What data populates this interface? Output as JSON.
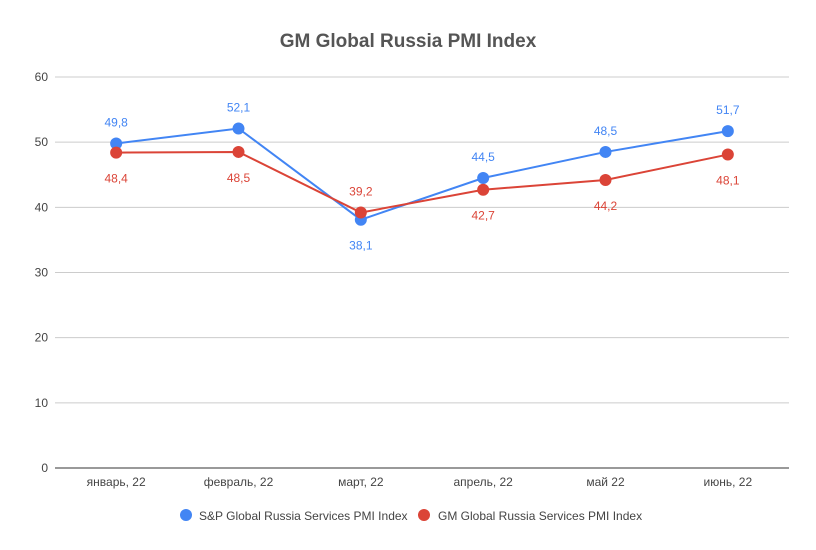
{
  "chart_data": {
    "type": "line",
    "title": "GM Global Russia PMI Index",
    "categories": [
      "январь, 22",
      "февраль, 22",
      "март, 22",
      "апрель, 22",
      "май 22",
      "июнь, 22"
    ],
    "ylim": [
      0,
      60
    ],
    "yticks": [
      0,
      10,
      20,
      30,
      40,
      50,
      60
    ],
    "grid": true,
    "legend_position": "bottom",
    "series": [
      {
        "name": "S&P Global Russia Services PMI Index",
        "color": "#4285f4",
        "values": [
          49.8,
          52.1,
          38.1,
          44.5,
          48.5,
          51.7
        ],
        "labels": [
          "49,8",
          "52,1",
          "38,1",
          "44,5",
          "48,5",
          "51,7"
        ]
      },
      {
        "name": "GM Global Russia Services PMI Index",
        "color": "#db4437",
        "values": [
          48.4,
          48.5,
          39.2,
          42.7,
          44.2,
          48.1
        ],
        "labels": [
          "48,4",
          "48,5",
          "39,2",
          "42,7",
          "44,2",
          "48,1"
        ]
      }
    ]
  }
}
